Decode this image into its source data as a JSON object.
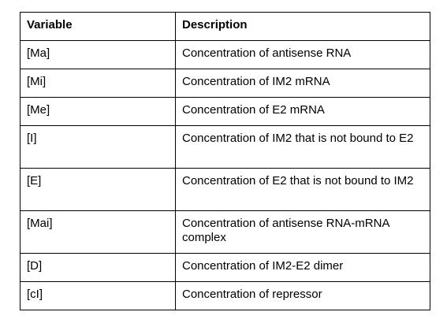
{
  "table": {
    "headers": [
      "Variable",
      "Description"
    ],
    "rows": [
      {
        "variable": "[Ma]",
        "description": "Concentration of antisense RNA"
      },
      {
        "variable": "[Mi]",
        "description": "Concentration of IM2 mRNA"
      },
      {
        "variable": "[Me]",
        "description": "Concentration of E2 mRNA"
      },
      {
        "variable": "[I]",
        "description": "Concentration of IM2 that is not bound to E2"
      },
      {
        "variable": "[E]",
        "description": "Concentration of E2 that is not bound to IM2"
      },
      {
        "variable": "[Mai]",
        "description": "Concentration of antisense RNA-mRNA complex"
      },
      {
        "variable": "[D]",
        "description": "Concentration of IM2-E2 dimer"
      },
      {
        "variable": "[cI]",
        "description": "Concentration of repressor"
      }
    ]
  }
}
